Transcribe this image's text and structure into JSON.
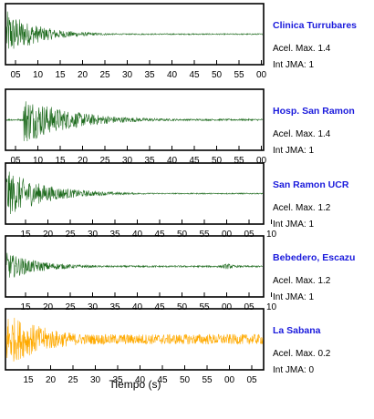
{
  "colors": {
    "accent_station": "#1a1adc",
    "trace_green": "#1e6b1e",
    "trace_orange": "#ffaa00"
  },
  "chart_data": [
    {
      "type": "line",
      "name": "Clinica Turrubares",
      "accel_label": "Acel. Max. 1.4",
      "jma_label": "Int JMA: 1",
      "color": "#1e6b1e",
      "onset_fraction": 0.0,
      "noise_level": 0.02,
      "peak_fraction": 0.85,
      "decay": 0.12,
      "tick_labels": [
        "05",
        "10",
        "15",
        "20",
        "25",
        "30",
        "35",
        "40",
        "45",
        "50",
        "55",
        "00"
      ]
    },
    {
      "type": "line",
      "name": "Hosp. San Ramon",
      "accel_label": "Acel. Max. 1.4",
      "jma_label": "Int JMA: 1",
      "color": "#1e6b1e",
      "onset_fraction": 0.07,
      "noise_level": 0.03,
      "peak_fraction": 0.85,
      "decay": 0.18,
      "tick_labels": [
        "05",
        "10",
        "15",
        "20",
        "25",
        "30",
        "35",
        "40",
        "45",
        "50",
        "55",
        "00"
      ]
    },
    {
      "type": "line",
      "name": "San Ramon UCR",
      "accel_label": "Acel. Max. 1.2",
      "jma_label": "Int JMA: 1",
      "color": "#1e6b1e",
      "onset_fraction": 0.0,
      "noise_level": 0.02,
      "peak_fraction": 0.85,
      "decay": 0.15,
      "tick_labels": [
        "15",
        "20",
        "25",
        "30",
        "35",
        "40",
        "45",
        "50",
        "55",
        "00",
        "05",
        "10"
      ]
    },
    {
      "type": "line",
      "name": "Bebedero, Escazu",
      "accel_label": "Acel. Max. 1.2",
      "jma_label": "Int JMA: 1",
      "color": "#1e6b1e",
      "onset_fraction": 0.0,
      "noise_level": 0.03,
      "peak_fraction": 0.5,
      "decay": 0.13,
      "tick_labels": [
        "15",
        "20",
        "25",
        "30",
        "35",
        "40",
        "45",
        "50",
        "55",
        "00",
        "05",
        "10"
      ]
    },
    {
      "type": "line",
      "name": "La Sabana",
      "accel_label": "Acel. Max. 0.2",
      "jma_label": "Int JMA: 0",
      "color": "#ffaa00",
      "onset_fraction": 0.0,
      "noise_level": 0.18,
      "peak_fraction": 0.95,
      "decay": 0.18,
      "tick_labels": [
        "15",
        "20",
        "25",
        "30",
        "35",
        "40",
        "45",
        "50",
        "55",
        "00",
        "05"
      ]
    }
  ],
  "xlabel": "Tiempo (s)"
}
